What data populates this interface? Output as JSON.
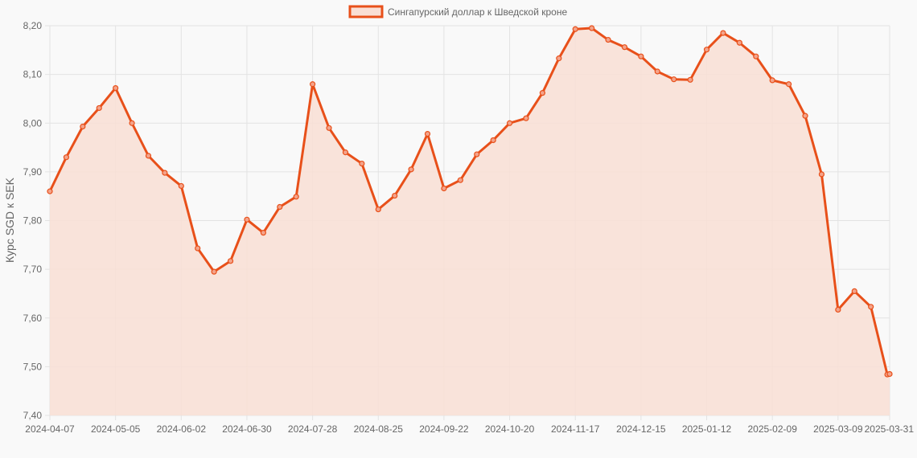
{
  "chart_data": {
    "type": "line",
    "title": "",
    "xlabel": "",
    "ylabel": "Курс SGD к SEK",
    "ylim": [
      7.4,
      8.2
    ],
    "y_ticks": [
      "7,40",
      "7,50",
      "7,60",
      "7,70",
      "7,80",
      "7,90",
      "8,00",
      "8,10",
      "8,20"
    ],
    "x_tick_labels": [
      "2024-04-07",
      "2024-05-05",
      "2024-06-02",
      "2024-06-30",
      "2024-07-28",
      "2024-08-25",
      "2024-09-22",
      "2024-10-20",
      "2024-11-17",
      "2024-12-15",
      "2025-01-12",
      "2025-02-09",
      "2025-03-09",
      "2025-03-31"
    ],
    "grid": true,
    "legend": "top-center",
    "colors": {
      "line": "#e8501a",
      "fill": "#f9dfd5"
    },
    "series": [
      {
        "name": "Сингапурский доллар к Шведской кроне",
        "x": [
          "2024-04-07",
          "2024-04-14",
          "2024-04-21",
          "2024-04-28",
          "2024-05-05",
          "2024-05-12",
          "2024-05-19",
          "2024-05-26",
          "2024-06-02",
          "2024-06-09",
          "2024-06-16",
          "2024-06-23",
          "2024-06-30",
          "2024-07-07",
          "2024-07-14",
          "2024-07-21",
          "2024-07-28",
          "2024-08-04",
          "2024-08-11",
          "2024-08-18",
          "2024-08-25",
          "2024-09-01",
          "2024-09-08",
          "2024-09-15",
          "2024-09-22",
          "2024-09-29",
          "2024-10-06",
          "2024-10-13",
          "2024-10-20",
          "2024-10-27",
          "2024-11-03",
          "2024-11-10",
          "2024-11-17",
          "2024-11-24",
          "2024-12-01",
          "2024-12-08",
          "2024-12-15",
          "2024-12-22",
          "2024-12-29",
          "2025-01-05",
          "2025-01-12",
          "2025-01-19",
          "2025-01-26",
          "2025-02-02",
          "2025-02-09",
          "2025-02-16",
          "2025-02-23",
          "2025-03-02",
          "2025-03-09",
          "2025-03-16",
          "2025-03-23",
          "2025-03-30",
          "2025-03-31"
        ],
        "values": [
          7.86,
          7.93,
          7.993,
          8.031,
          8.072,
          8.0,
          7.933,
          7.898,
          7.871,
          7.743,
          7.695,
          7.717,
          7.802,
          7.775,
          7.828,
          7.849,
          8.08,
          7.99,
          7.94,
          7.917,
          7.823,
          7.851,
          7.905,
          7.978,
          7.866,
          7.883,
          7.936,
          7.965,
          8.0,
          8.01,
          8.062,
          8.133,
          8.193,
          8.195,
          8.171,
          8.156,
          8.137,
          8.106,
          8.09,
          8.089,
          8.151,
          8.185,
          8.165,
          8.137,
          8.088,
          8.08,
          8.015,
          7.895,
          7.617,
          7.655,
          7.623,
          7.484,
          7.485
        ]
      }
    ]
  }
}
